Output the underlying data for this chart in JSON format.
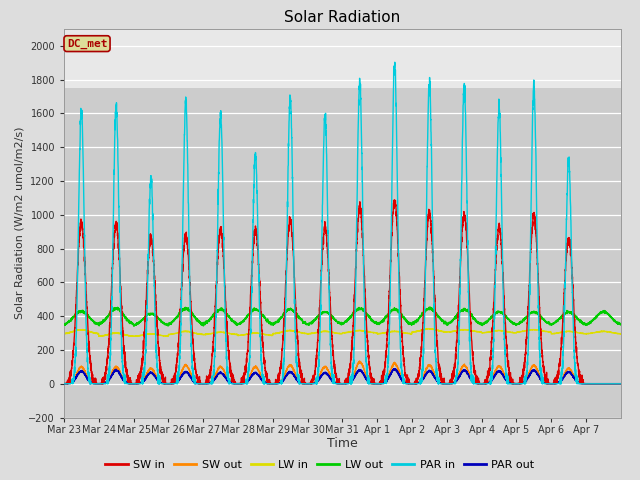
{
  "title": "Solar Radiation",
  "ylabel": "Solar Radiation (W/m2 umol/m2/s)",
  "xlabel": "Time",
  "ylim": [
    -200,
    2100
  ],
  "yticks": [
    -200,
    0,
    200,
    400,
    600,
    800,
    1000,
    1200,
    1400,
    1600,
    1800,
    2000
  ],
  "n_days": 16,
  "x_labels": [
    "Mar 23",
    "Mar 24",
    "Mar 25",
    "Mar 26",
    "Mar 27",
    "Mar 28",
    "Mar 29",
    "Mar 30",
    "Mar 31",
    "Apr 1",
    "Apr 2",
    "Apr 3",
    "Apr 4",
    "Apr 5",
    "Apr 6",
    "Apr 7"
  ],
  "series_colors": {
    "SW_in": "#dd0000",
    "SW_out": "#ff8800",
    "LW_in": "#dddd00",
    "LW_out": "#00cc00",
    "PAR_in": "#00ccdd",
    "PAR_out": "#0000bb"
  },
  "legend_labels": [
    "SW in",
    "SW out",
    "LW in",
    "LW out",
    "PAR in",
    "PAR out"
  ],
  "legend_colors": [
    "#dd0000",
    "#ff8800",
    "#dddd00",
    "#00cc00",
    "#00ccdd",
    "#0000bb"
  ],
  "annotation_text": "DC_met",
  "annotation_color": "#aa0000",
  "annotation_bg": "#dddd99",
  "bg_color": "#dddddd",
  "plot_bg_dark": "#cccccc",
  "plot_bg_light": "#e8e8e8",
  "grid_color": "#ffffff",
  "day_peaks_SW_in": [
    950,
    940,
    860,
    880,
    910,
    910,
    970,
    920,
    1040,
    1080,
    1010,
    1000,
    930,
    1000,
    860,
    0
  ],
  "day_peaks_SW_out": [
    100,
    100,
    90,
    110,
    100,
    100,
    110,
    100,
    130,
    120,
    110,
    110,
    105,
    110,
    90,
    0
  ],
  "day_peaks_LW_in_base": [
    295,
    280,
    280,
    290,
    290,
    285,
    295,
    295,
    300,
    295,
    305,
    305,
    300,
    305,
    295,
    295
  ],
  "day_peaks_LW_in_noon": [
    320,
    300,
    295,
    310,
    305,
    300,
    315,
    310,
    315,
    310,
    325,
    320,
    315,
    320,
    310,
    310
  ],
  "day_peaks_LW_out_base": [
    345,
    345,
    340,
    345,
    345,
    345,
    345,
    345,
    350,
    345,
    350,
    345,
    345,
    345,
    345,
    345
  ],
  "day_peaks_LW_out_noon": [
    430,
    445,
    415,
    445,
    440,
    440,
    440,
    425,
    445,
    440,
    445,
    440,
    425,
    425,
    425,
    425
  ],
  "day_peaks_PAR_in": [
    1620,
    1640,
    1220,
    1660,
    1600,
    1360,
    1690,
    1590,
    1790,
    1900,
    1780,
    1760,
    1640,
    1750,
    1320,
    0
  ],
  "day_peaks_PAR_out": [
    75,
    80,
    65,
    70,
    65,
    65,
    70,
    65,
    80,
    85,
    75,
    80,
    75,
    80,
    70,
    0
  ]
}
